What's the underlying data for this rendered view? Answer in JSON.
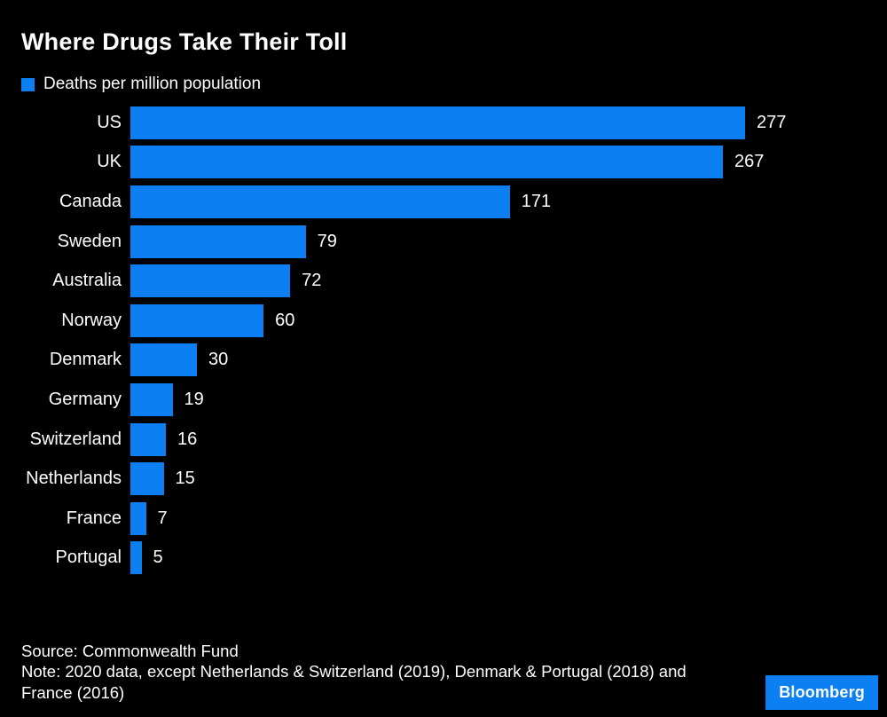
{
  "header": {
    "title": "Where Drugs Take Their Toll",
    "legend_label": "Deaths per million population"
  },
  "colors": {
    "background": "#000000",
    "bar": "#0C7FF2",
    "text": "#FFFFFF",
    "brand_background": "#0C7FF2"
  },
  "chart_data": {
    "type": "bar",
    "orientation": "horizontal",
    "title": "Where Drugs Take Their Toll",
    "legend": "Deaths per million population",
    "legend_position": "top-left",
    "grid": false,
    "xlim": [
      0,
      290
    ],
    "categories": [
      "US",
      "UK",
      "Canada",
      "Sweden",
      "Australia",
      "Norway",
      "Denmark",
      "Germany",
      "Switzerland",
      "Netherlands",
      "France",
      "Portugal"
    ],
    "values": [
      277,
      267,
      171,
      79,
      72,
      60,
      30,
      19,
      16,
      15,
      7,
      5
    ],
    "value_labels": [
      "277",
      "267",
      "171",
      "79",
      "72",
      "60",
      "30",
      "19",
      "16",
      "15",
      "7",
      "5"
    ],
    "max_value_for_scale": 277
  },
  "footer": {
    "source": "Source: Commonwealth Fund",
    "note": "Note: 2020 data, except Netherlands & Switzerland (2019), Denmark & Portugal (2018) and France (2016)",
    "brand": "Bloomberg"
  }
}
